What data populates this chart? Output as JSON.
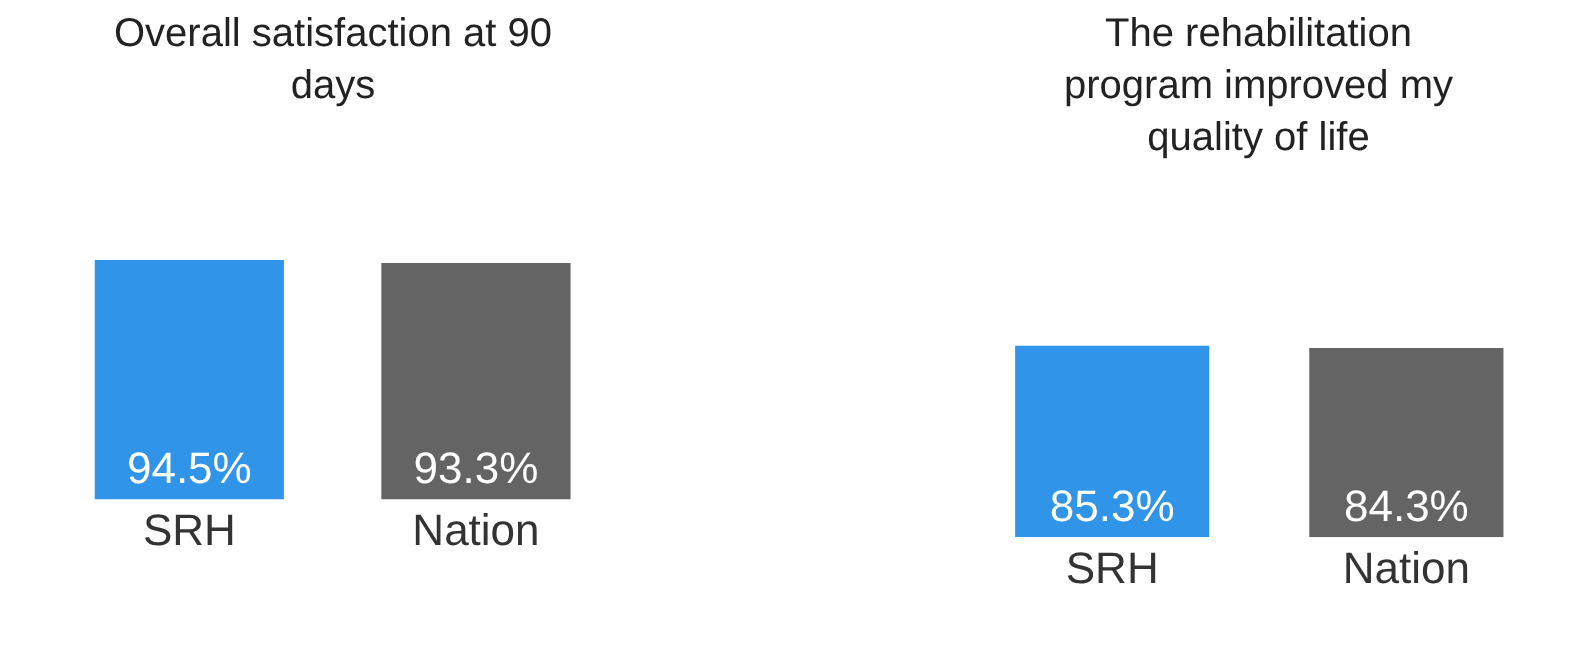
{
  "chart_data": [
    {
      "type": "bar",
      "title": "Overall satisfaction at 90 days",
      "categories": [
        "SRH",
        "Nation"
      ],
      "values": [
        94.5,
        93.3
      ],
      "colors": [
        "#3094e8",
        "#646464"
      ],
      "value_labels": [
        "94.5%",
        "93.3%"
      ]
    },
    {
      "type": "bar",
      "title": "The rehabilitation program improved my quality of life",
      "categories": [
        "SRH",
        "Nation"
      ],
      "values": [
        85.3,
        84.3
      ],
      "colors": [
        "#3094e8",
        "#646464"
      ],
      "value_labels": [
        "85.3%",
        "84.3%"
      ]
    }
  ]
}
